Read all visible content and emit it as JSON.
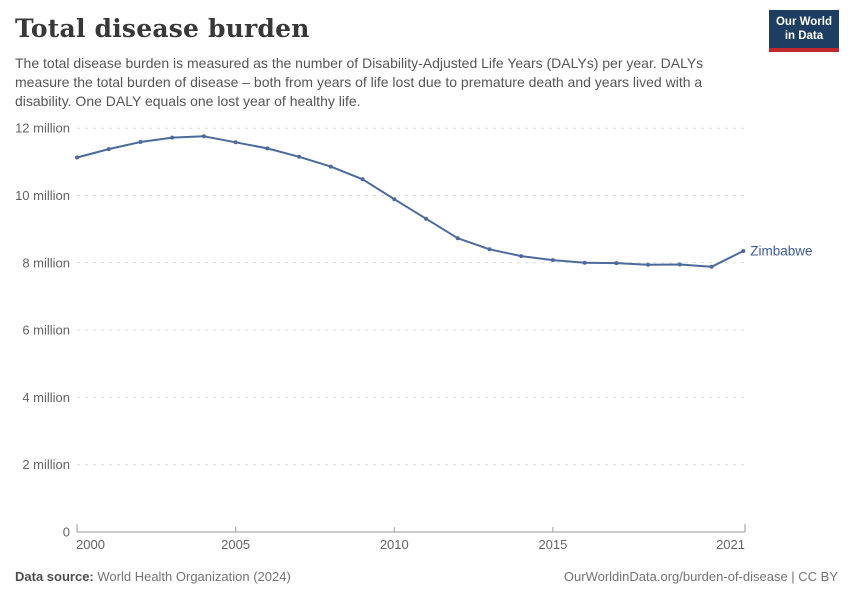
{
  "header": {
    "title": "Total disease burden",
    "subtitle": "The total disease burden is measured as the number of Disability-Adjusted Life Years (DALYs) per year. DALYs measure the total burden of disease – both from years of life lost due to premature death and years lived with a disability. One DALY equals one lost year of healthy life.",
    "logo": {
      "line1": "Our World",
      "line2": "in Data"
    }
  },
  "chart_data": {
    "type": "line",
    "title": "Total disease burden",
    "unit": "DALYs (Disability-Adjusted Life Years) per year",
    "x": [
      2000,
      2001,
      2002,
      2003,
      2004,
      2005,
      2006,
      2007,
      2008,
      2009,
      2010,
      2011,
      2012,
      2013,
      2014,
      2015,
      2016,
      2017,
      2018,
      2019,
      2020,
      2021
    ],
    "series": [
      {
        "name": "Zimbabwe",
        "color": "#4C6A9C",
        "values_millions": [
          11.13,
          11.38,
          11.59,
          11.72,
          11.76,
          11.58,
          11.4,
          11.15,
          10.86,
          10.48,
          9.89,
          9.31,
          8.73,
          8.4,
          8.2,
          8.08,
          8.0,
          7.99,
          7.94,
          7.95,
          7.88,
          8.35
        ]
      }
    ],
    "xlabel": "",
    "ylabel": "",
    "xlim": [
      2000,
      2021
    ],
    "ylim_millions": [
      0,
      12
    ],
    "x_tick_labels": [
      "2000",
      "2005",
      "2010",
      "2015",
      "2021"
    ],
    "x_tick_years": [
      2000,
      2005,
      2010,
      2015,
      2021
    ],
    "y_tick_values_millions": [
      0,
      2,
      4,
      6,
      8,
      10,
      12
    ],
    "y_tick_labels": [
      "0",
      "2 million",
      "4 million",
      "6 million",
      "8 million",
      "10 million",
      "12 million"
    ],
    "grid": "horizontal dashed",
    "legend_position": "end-of-line label",
    "entity_label": "Zimbabwe"
  },
  "footer": {
    "data_source_label": "Data source:",
    "data_source_value": "World Health Organization (2024)",
    "attribution": "OurWorldinData.org/burden-of-disease | CC BY"
  },
  "colors": {
    "line": "#4C6A9C",
    "entity_label": "#3d5c94",
    "gridline": "#dadada",
    "axis": "#9a9a9a",
    "axis_text": "#636363",
    "logo_bg": "#1d3d63",
    "logo_accent": "#be282d",
    "title_text": "#383838"
  }
}
